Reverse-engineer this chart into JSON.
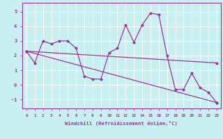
{
  "xlabel": "Windchill (Refroidissement éolien,°C)",
  "background_color": "#c8f0f0",
  "line_color": "#993399",
  "grid_color": "#ffffff",
  "xlim": [
    -0.5,
    23.5
  ],
  "ylim": [
    -1.6,
    5.6
  ],
  "xticks": [
    0,
    1,
    2,
    3,
    4,
    5,
    6,
    7,
    8,
    9,
    10,
    11,
    12,
    13,
    14,
    15,
    16,
    17,
    18,
    19,
    20,
    21,
    22,
    23
  ],
  "yticks": [
    -1,
    0,
    1,
    2,
    3,
    4,
    5
  ],
  "series": [
    {
      "x": [
        0,
        1,
        2,
        3,
        4,
        5,
        6,
        7,
        8,
        9,
        10,
        11,
        12,
        13,
        14,
        15,
        16,
        17,
        18,
        19,
        20,
        21,
        22,
        23
      ],
      "y": [
        2.3,
        1.5,
        3.0,
        2.8,
        3.0,
        3.0,
        2.5,
        0.6,
        0.4,
        0.4,
        2.2,
        2.5,
        4.1,
        2.9,
        4.1,
        4.9,
        4.8,
        2.0,
        -0.3,
        -0.3,
        0.8,
        -0.2,
        -0.5,
        -1.2
      ]
    },
    {
      "x": [
        0,
        23
      ],
      "y": [
        2.3,
        1.5
      ]
    },
    {
      "x": [
        0,
        23
      ],
      "y": [
        2.3,
        -1.2
      ]
    }
  ]
}
